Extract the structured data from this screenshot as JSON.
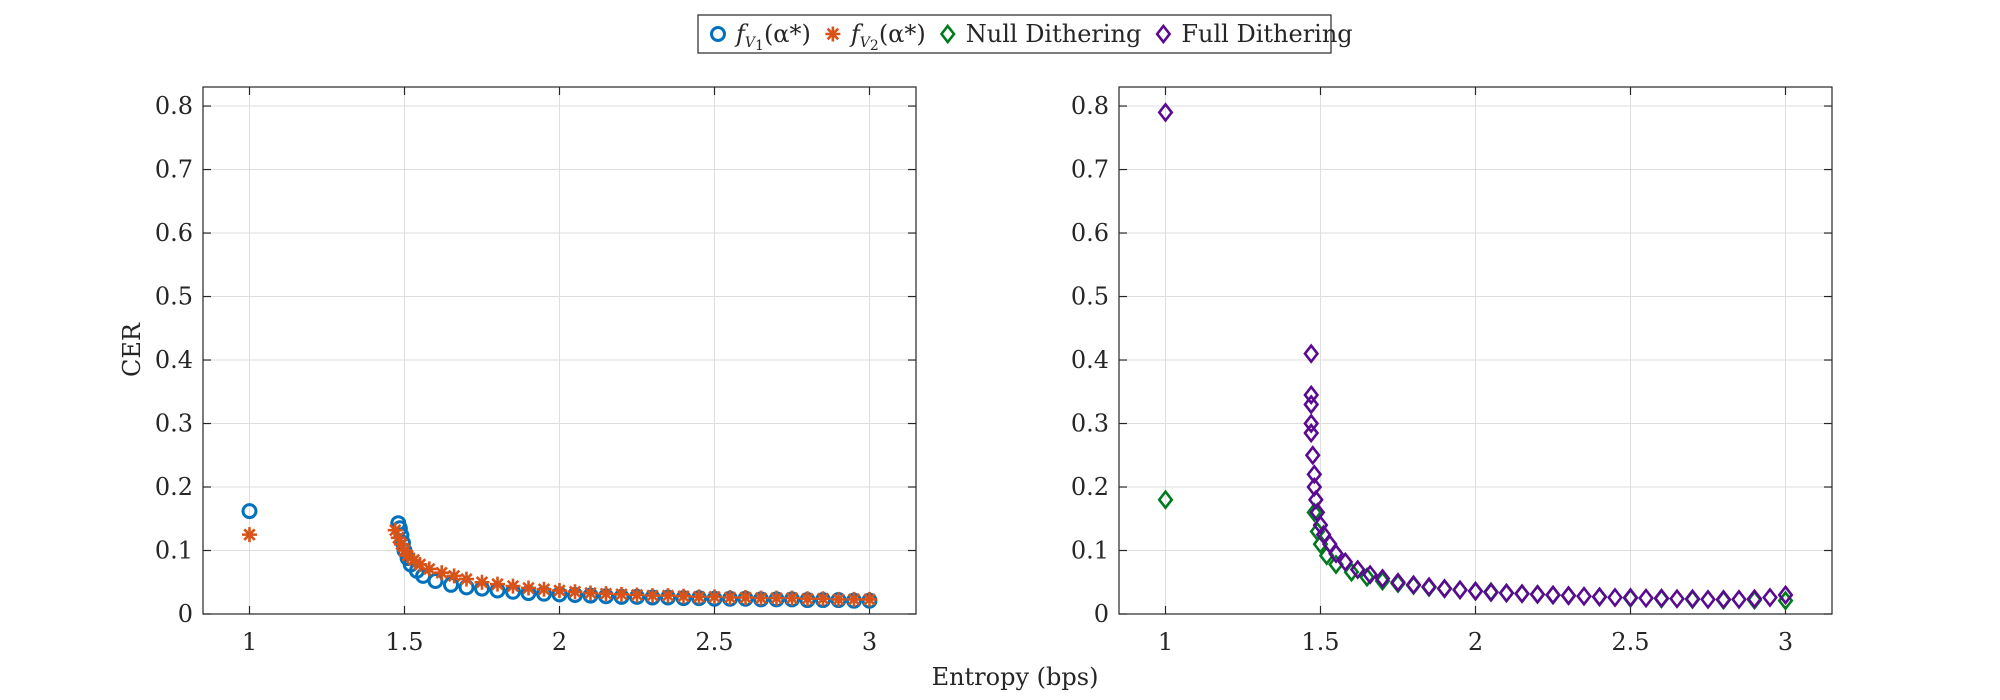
{
  "figure": {
    "xlabel": "Entropy (bps)",
    "ylabel": "CER",
    "colors": {
      "fV1": "#0072BD",
      "fV2": "#D95319",
      "null": "#007A1E",
      "full": "#5A0A91",
      "grid": "#dedede",
      "axes": "#262626"
    }
  },
  "legend": {
    "items": [
      {
        "key": "fV1",
        "prefix": "f",
        "sub": "V",
        "subsub": "1",
        "suffix": "(α*)",
        "marker": "circle"
      },
      {
        "key": "fV2",
        "prefix": "f",
        "sub": "V",
        "subsub": "2",
        "suffix": "(α*)",
        "marker": "asterisk"
      },
      {
        "key": "null",
        "label": "Null Dithering",
        "marker": "diamond"
      },
      {
        "key": "full",
        "label": "Full Dithering",
        "marker": "diamond"
      }
    ]
  },
  "chart_data": [
    {
      "type": "scatter",
      "title": "",
      "xlabel": "",
      "ylabel": "CER",
      "xlim": [
        0.85,
        3.15
      ],
      "ylim": [
        0,
        0.83
      ],
      "xticks": [
        1,
        1.5,
        2,
        2.5,
        3
      ],
      "yticks": [
        0,
        0.1,
        0.2,
        0.3,
        0.4,
        0.5,
        0.6,
        0.7,
        0.8
      ],
      "grid": true,
      "series": [
        {
          "name": "f_V1(α*)",
          "key": "fV1",
          "marker": "circle",
          "x": [
            1.0,
            1.48,
            1.485,
            1.49,
            1.495,
            1.5,
            1.51,
            1.52,
            1.54,
            1.56,
            1.6,
            1.65,
            1.7,
            1.75,
            1.8,
            1.85,
            1.9,
            1.95,
            2.0,
            2.05,
            2.1,
            2.15,
            2.2,
            2.25,
            2.3,
            2.35,
            2.4,
            2.45,
            2.5,
            2.55,
            2.6,
            2.65,
            2.7,
            2.75,
            2.8,
            2.85,
            2.9,
            2.95,
            3.0
          ],
          "y": [
            0.162,
            0.143,
            0.135,
            0.124,
            0.112,
            0.1,
            0.088,
            0.078,
            0.068,
            0.06,
            0.052,
            0.046,
            0.042,
            0.04,
            0.037,
            0.035,
            0.033,
            0.032,
            0.031,
            0.03,
            0.029,
            0.028,
            0.027,
            0.027,
            0.026,
            0.026,
            0.025,
            0.025,
            0.024,
            0.024,
            0.024,
            0.023,
            0.023,
            0.023,
            0.022,
            0.022,
            0.022,
            0.021,
            0.021
          ]
        },
        {
          "name": "f_V2(α*)",
          "key": "fV2",
          "marker": "asterisk",
          "x": [
            1.0,
            1.47,
            1.48,
            1.49,
            1.5,
            1.51,
            1.53,
            1.55,
            1.58,
            1.62,
            1.66,
            1.7,
            1.75,
            1.8,
            1.85,
            1.9,
            1.95,
            2.0,
            2.05,
            2.1,
            2.15,
            2.2,
            2.25,
            2.3,
            2.35,
            2.4,
            2.45,
            2.5,
            2.55,
            2.6,
            2.65,
            2.7,
            2.75,
            2.8,
            2.85,
            2.9,
            2.95,
            3.0
          ],
          "y": [
            0.125,
            0.132,
            0.12,
            0.11,
            0.1,
            0.092,
            0.085,
            0.078,
            0.071,
            0.065,
            0.06,
            0.055,
            0.05,
            0.047,
            0.044,
            0.041,
            0.039,
            0.037,
            0.035,
            0.033,
            0.032,
            0.031,
            0.03,
            0.029,
            0.029,
            0.028,
            0.027,
            0.027,
            0.026,
            0.026,
            0.025,
            0.025,
            0.025,
            0.024,
            0.024,
            0.023,
            0.023,
            0.023
          ]
        }
      ]
    },
    {
      "type": "scatter",
      "title": "",
      "xlabel": "",
      "ylabel": "",
      "xlim": [
        0.85,
        3.15
      ],
      "ylim": [
        0,
        0.83
      ],
      "xticks": [
        1,
        1.5,
        2,
        2.5,
        3
      ],
      "yticks": [
        0,
        0.1,
        0.2,
        0.3,
        0.4,
        0.5,
        0.6,
        0.7,
        0.8
      ],
      "grid": true,
      "series": [
        {
          "name": "Null Dithering",
          "key": "null",
          "marker": "diamond",
          "x": [
            1.0,
            1.48,
            1.49,
            1.5,
            1.52,
            1.55,
            1.6,
            1.65,
            1.7,
            1.75,
            1.8,
            1.85,
            1.9,
            1.95,
            2.0,
            2.05,
            2.1,
            2.15,
            2.2,
            2.25,
            2.3,
            2.4,
            2.5,
            2.6,
            2.7,
            2.8,
            2.9,
            3.0
          ],
          "y": [
            0.18,
            0.16,
            0.13,
            0.11,
            0.092,
            0.078,
            0.066,
            0.058,
            0.052,
            0.048,
            0.045,
            0.042,
            0.04,
            0.038,
            0.036,
            0.035,
            0.033,
            0.032,
            0.031,
            0.03,
            0.029,
            0.027,
            0.025,
            0.024,
            0.023,
            0.022,
            0.022,
            0.021
          ]
        },
        {
          "name": "Full Dithering",
          "key": "full",
          "marker": "diamond",
          "x": [
            1.0,
            1.47,
            1.47,
            1.47,
            1.47,
            1.47,
            1.475,
            1.48,
            1.48,
            1.485,
            1.49,
            1.5,
            1.51,
            1.53,
            1.55,
            1.58,
            1.62,
            1.66,
            1.7,
            1.75,
            1.8,
            1.85,
            1.9,
            1.95,
            2.0,
            2.05,
            2.1,
            2.15,
            2.2,
            2.25,
            2.3,
            2.35,
            2.4,
            2.45,
            2.5,
            2.55,
            2.6,
            2.65,
            2.7,
            2.75,
            2.8,
            2.85,
            2.9,
            2.95,
            3.0
          ],
          "y": [
            0.79,
            0.41,
            0.345,
            0.33,
            0.3,
            0.285,
            0.25,
            0.22,
            0.2,
            0.18,
            0.16,
            0.14,
            0.125,
            0.11,
            0.095,
            0.082,
            0.07,
            0.062,
            0.056,
            0.05,
            0.046,
            0.043,
            0.04,
            0.038,
            0.036,
            0.034,
            0.033,
            0.032,
            0.031,
            0.03,
            0.029,
            0.028,
            0.027,
            0.026,
            0.026,
            0.025,
            0.025,
            0.024,
            0.024,
            0.023,
            0.023,
            0.023,
            0.024,
            0.026,
            0.03
          ]
        }
      ]
    }
  ]
}
